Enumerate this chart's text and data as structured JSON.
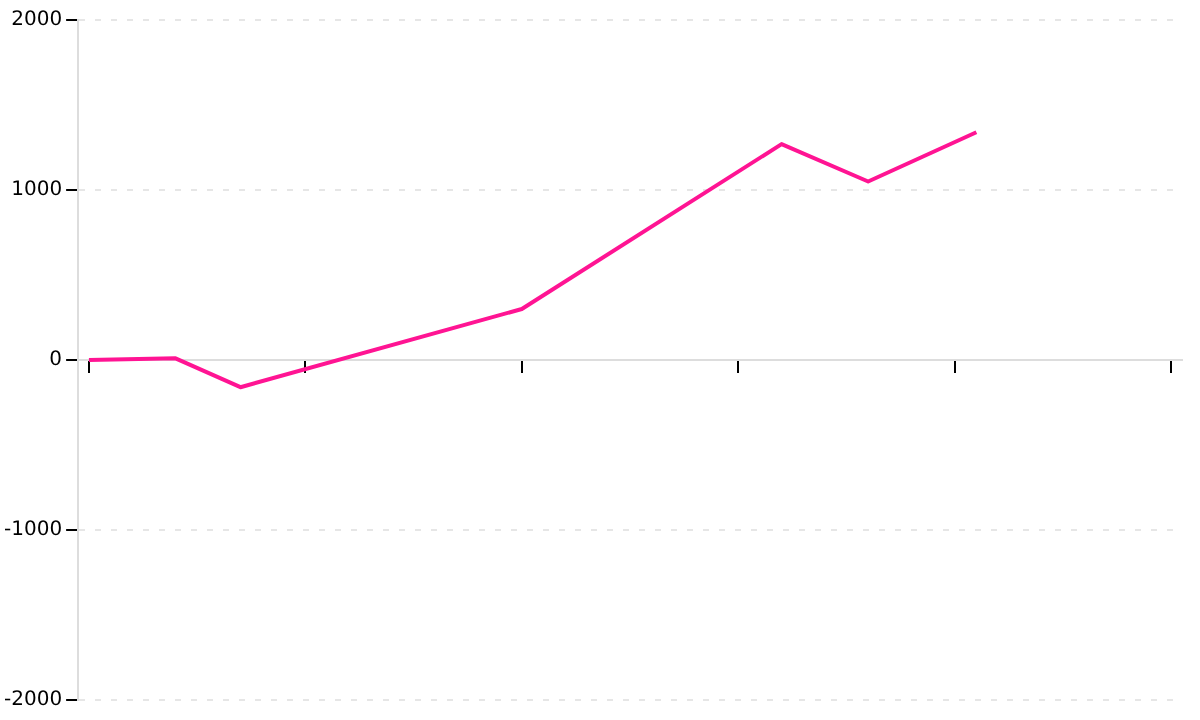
{
  "chart_data": {
    "type": "line",
    "categories": [
      null,
      null,
      null,
      null,
      null,
      null,
      null,
      null,
      null,
      null,
      null,
      null,
      null,
      null,
      null,
      null,
      null,
      null,
      null,
      null,
      null,
      null,
      null,
      null,
      null,
      null,
      null,
      null,
      null,
      null,
      null,
      null,
      null,
      null,
      null,
      null,
      null,
      null,
      null,
      null,
      null,
      null,
      null,
      null,
      null,
      null,
      null,
      null,
      null,
      null,
      null
    ],
    "series": [
      {
        "color": "#ff1493",
        "values": [
          0,
          null,
          null,
          null,
          10,
          null,
          null,
          -160,
          null,
          null,
          null,
          null,
          null,
          null,
          null,
          null,
          null,
          null,
          null,
          null,
          300,
          null,
          null,
          null,
          null,
          null,
          null,
          null,
          null,
          null,
          null,
          null,
          1270,
          null,
          null,
          null,
          1050,
          null,
          null,
          null,
          null,
          1340,
          null,
          null,
          null,
          null,
          null,
          null,
          null,
          null,
          null
        ]
      }
    ],
    "ylim": [
      -2000,
      2000
    ],
    "yticks": [
      -2000,
      -1000,
      0,
      1000,
      2000
    ],
    "tick_labels": "y",
    "grid": "y",
    "legend": false,
    "marker": "none",
    "line_style": "solid"
  }
}
